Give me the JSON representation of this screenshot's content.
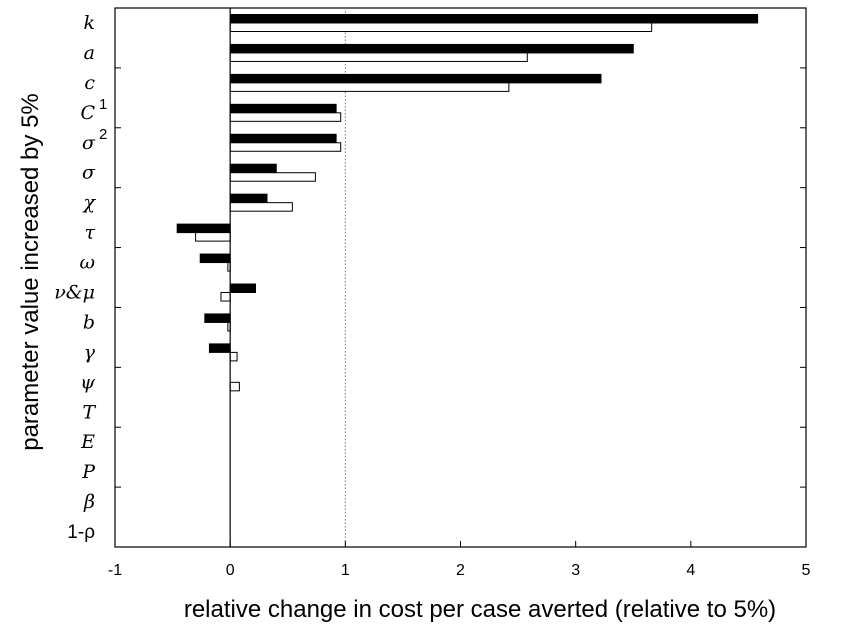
{
  "chart_data": {
    "type": "bar",
    "orientation": "horizontal",
    "xlabel": "relative change in cost per case averted (relative to 5%)",
    "ylabel": "parameter value increased by 5%",
    "xlim": [
      -1,
      5
    ],
    "xticks": [
      "-1",
      "0",
      "1",
      "2",
      "3",
      "4",
      "5"
    ],
    "reference_line": 1,
    "grid": false,
    "categories": [
      {
        "label": "k",
        "italic": true
      },
      {
        "label": "a",
        "italic": true
      },
      {
        "label": "c",
        "italic": true
      },
      {
        "label": "C",
        "italic": true,
        "sup": "1"
      },
      {
        "label": "σ",
        "italic": true,
        "sup": "2"
      },
      {
        "label": "σ",
        "italic": true
      },
      {
        "label": "χ",
        "italic": true
      },
      {
        "label": "τ",
        "italic": true
      },
      {
        "label": "ω",
        "italic": true
      },
      {
        "label": "ν&μ",
        "italic": true
      },
      {
        "label": "b",
        "italic": true
      },
      {
        "label": "γ",
        "italic": true
      },
      {
        "label": "ψ",
        "italic": true
      },
      {
        "label": "T",
        "italic": true
      },
      {
        "label": "E",
        "italic": true
      },
      {
        "label": "P",
        "italic": true
      },
      {
        "label": "β",
        "italic": true
      },
      {
        "label": "1-ρ",
        "italic": false
      }
    ],
    "series": [
      {
        "fill": "#000000",
        "values": [
          4.58,
          3.5,
          3.22,
          0.92,
          0.92,
          0.4,
          0.32,
          -0.46,
          -0.26,
          0.22,
          -0.22,
          -0.18,
          0,
          0,
          0,
          0,
          0,
          0
        ]
      },
      {
        "fill": "#ffffff",
        "values": [
          3.66,
          2.58,
          2.42,
          0.96,
          0.96,
          0.74,
          0.54,
          -0.3,
          -0.02,
          -0.08,
          -0.02,
          0.06,
          0.08,
          0,
          0,
          0,
          0,
          0
        ]
      }
    ]
  }
}
